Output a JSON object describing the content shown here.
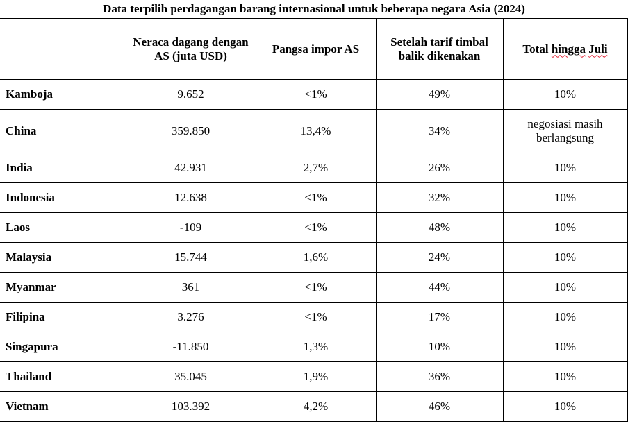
{
  "title": "Data terpilih perdagangan barang internasional untuk beberapa negara Asia (2024)",
  "headers": {
    "country": "",
    "trade_balance": "Neraca dagang dengan AS (juta USD)",
    "import_share": "Pangsa impor AS",
    "reciprocal_tariff": "Setelah tarif timbal balik dikenakan",
    "total_july_prefix": "Total ",
    "total_july_word1": "hingga",
    "total_july_space": " ",
    "total_july_word2": "Juli"
  },
  "rows": [
    {
      "country": "Kamboja",
      "trade_balance": "9.652",
      "import_share": "<1%",
      "reciprocal_tariff": "49%",
      "total_july": "10%"
    },
    {
      "country": "China",
      "trade_balance": "359.850",
      "import_share": "13,4%",
      "reciprocal_tariff": "34%",
      "total_july": "negosiasi masih berlangsung"
    },
    {
      "country": "India",
      "trade_balance": "42.931",
      "import_share": "2,7%",
      "reciprocal_tariff": "26%",
      "total_july": "10%"
    },
    {
      "country": "Indonesia",
      "trade_balance": "12.638",
      "import_share": "<1%",
      "reciprocal_tariff": "32%",
      "total_july": "10%"
    },
    {
      "country": "Laos",
      "trade_balance": "-109",
      "import_share": "<1%",
      "reciprocal_tariff": "48%",
      "total_july": "10%"
    },
    {
      "country": "Malaysia",
      "trade_balance": "15.744",
      "import_share": "1,6%",
      "reciprocal_tariff": "24%",
      "total_july": "10%"
    },
    {
      "country": "Myanmar",
      "trade_balance": "361",
      "import_share": "<1%",
      "reciprocal_tariff": "44%",
      "total_july": "10%"
    },
    {
      "country": "Filipina",
      "trade_balance": "3.276",
      "import_share": "<1%",
      "reciprocal_tariff": "17%",
      "total_july": "10%"
    },
    {
      "country": "Singapura",
      "trade_balance": "-11.850",
      "import_share": "1,3%",
      "reciprocal_tariff": "10%",
      "total_july": "10%"
    },
    {
      "country": "Thailand",
      "trade_balance": "35.045",
      "import_share": "1,9%",
      "reciprocal_tariff": "36%",
      "total_july": "10%"
    },
    {
      "country": "Vietnam",
      "trade_balance": "103.392",
      "import_share": "4,2%",
      "reciprocal_tariff": "46%",
      "total_july": "10%"
    }
  ],
  "colors": {
    "text": "#000000",
    "border": "#000000",
    "spellcheck_underline": "#e0182d",
    "background": "#ffffff"
  }
}
